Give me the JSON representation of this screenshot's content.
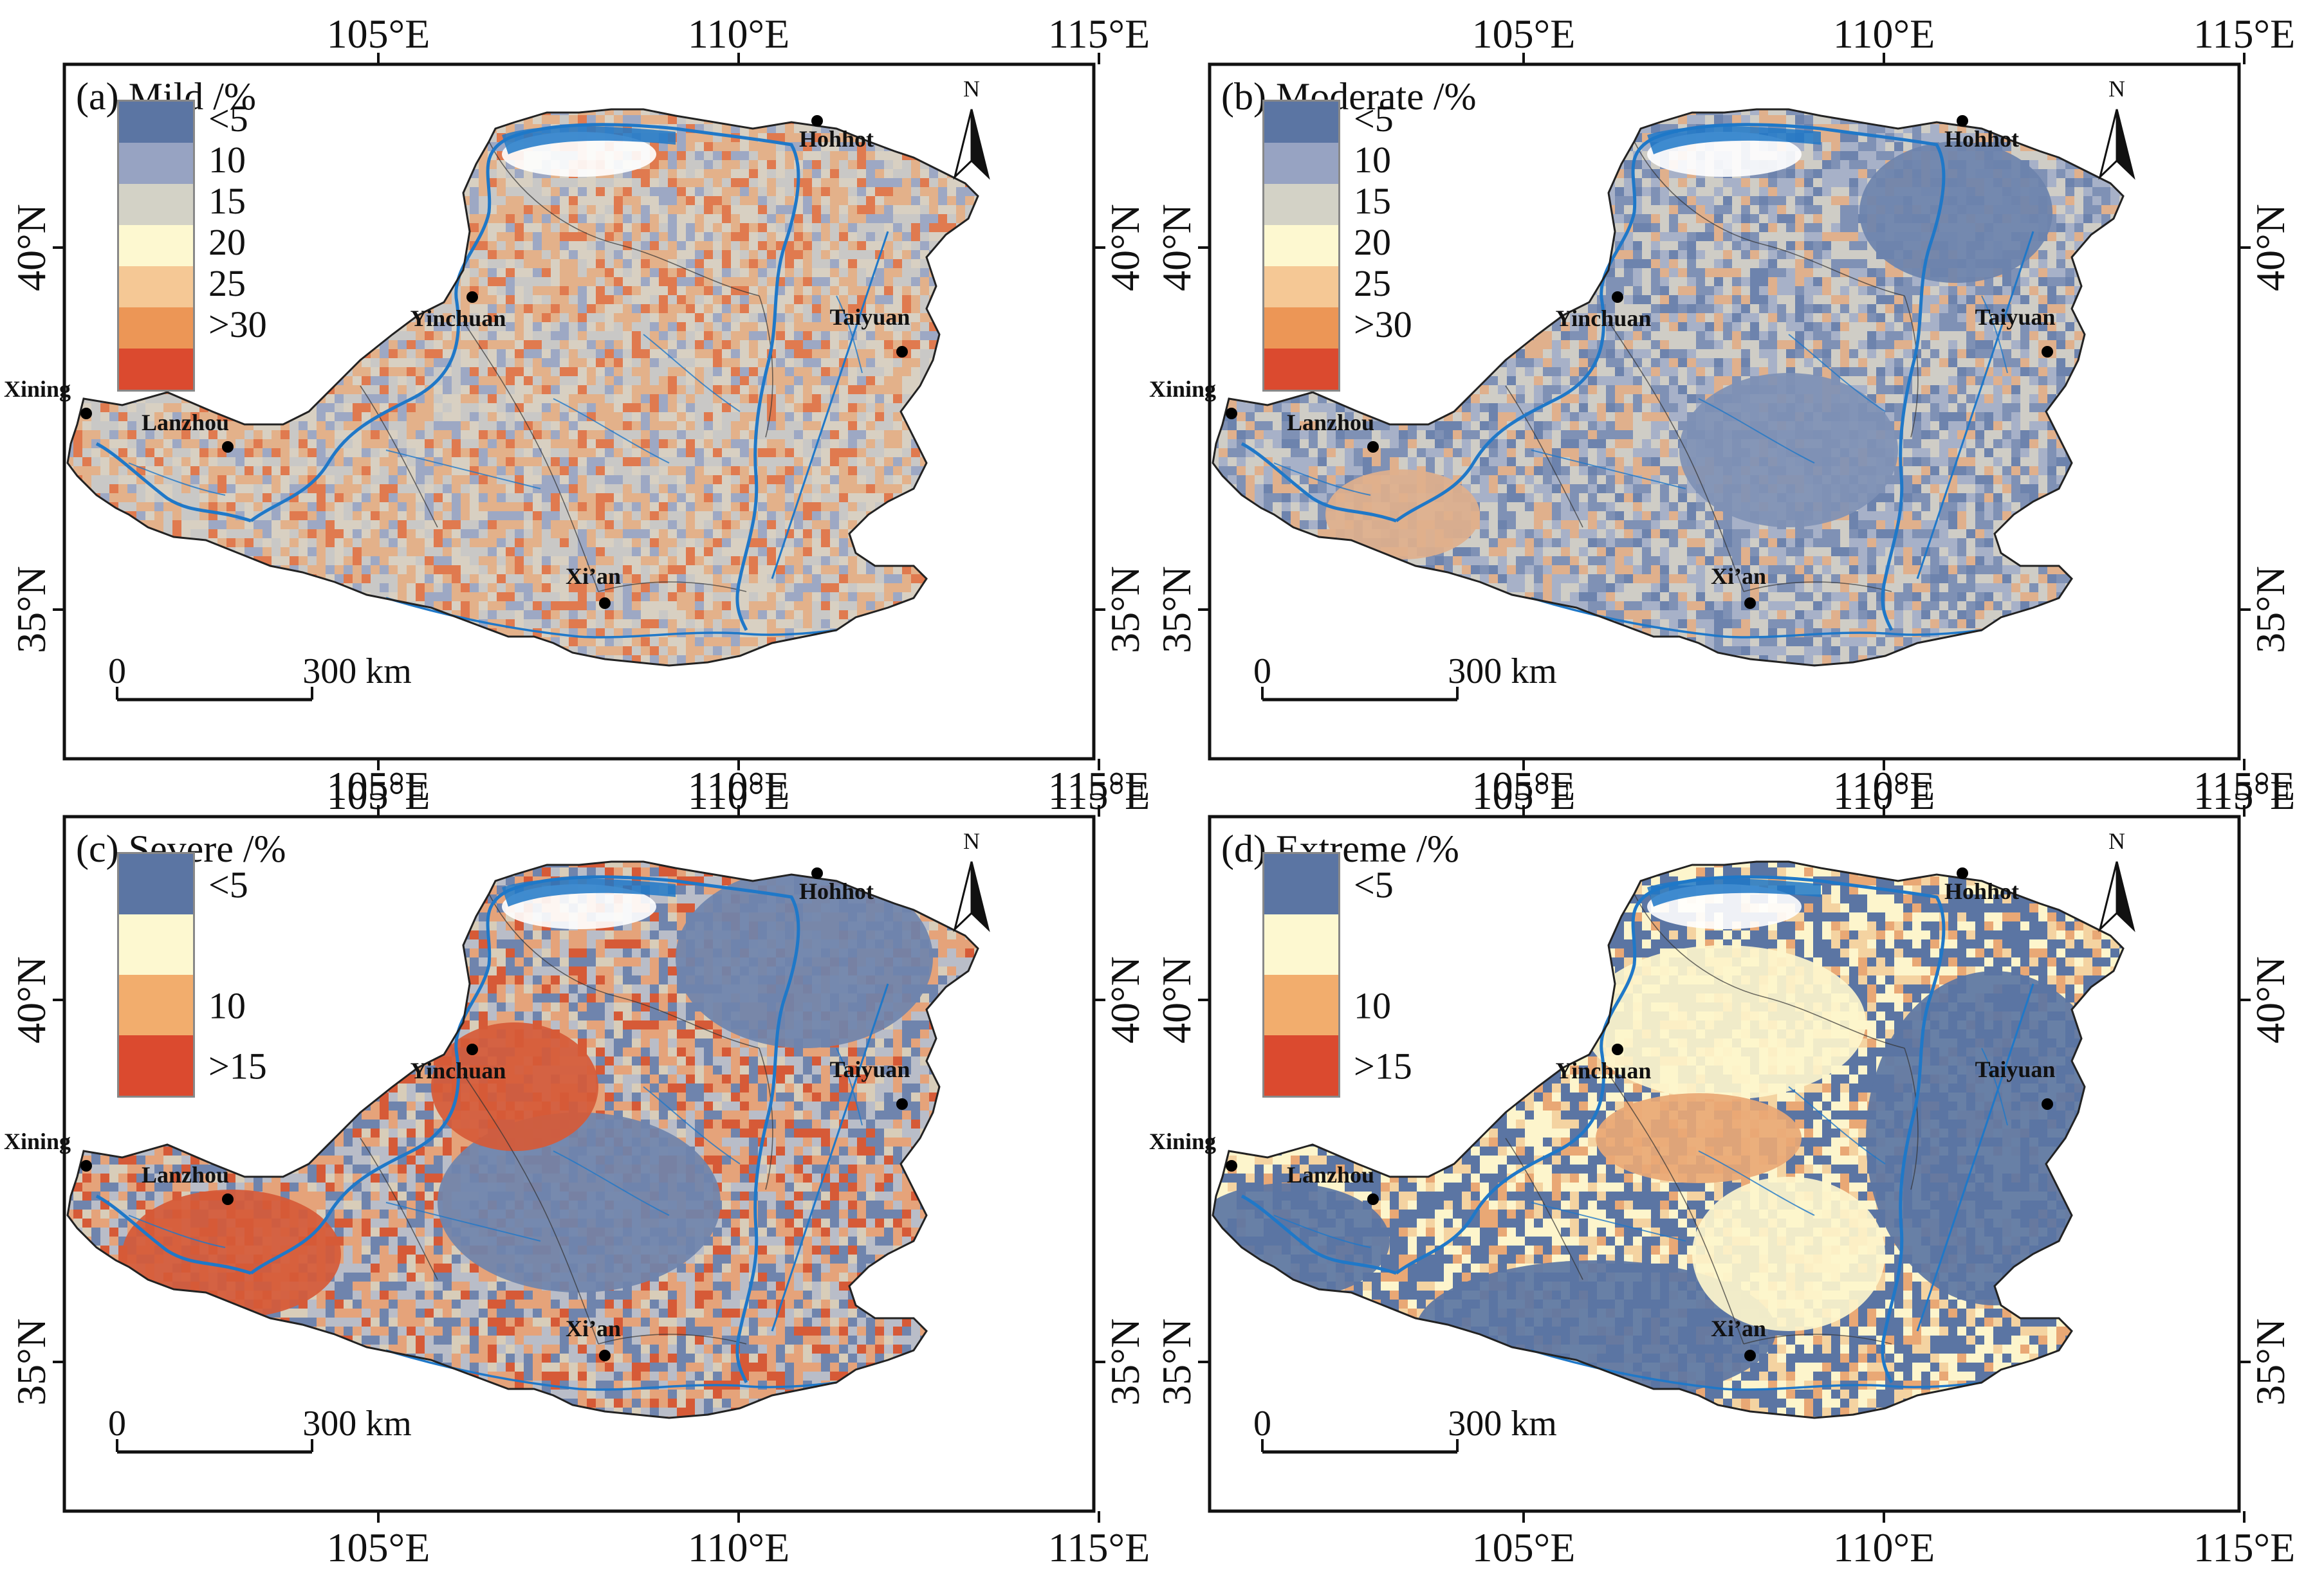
{
  "figure": {
    "axis_labels": {
      "lon_ticks": [
        "105°E",
        "110°E",
        "115°E"
      ],
      "lat_ticks": [
        "40°N",
        "35°N"
      ]
    },
    "north_label": "N",
    "scale_bar": {
      "start": "0",
      "end": "300 km"
    },
    "cities": [
      {
        "name": "Hohhot"
      },
      {
        "name": "Yinchuan"
      },
      {
        "name": "Taiyuan"
      },
      {
        "name": "Xining"
      },
      {
        "name": "Lanzhou"
      },
      {
        "name": "Xi’an"
      }
    ],
    "panels": [
      {
        "title": "(a) Mild /%",
        "legend": [
          {
            "label": "<5",
            "color": "#5b75a3"
          },
          {
            "label": "10",
            "color": "#97a3c2"
          },
          {
            "label": "15",
            "color": "#d3d2c6"
          },
          {
            "label": "20",
            "color": "#fdf8d0"
          },
          {
            "label": "25",
            "color": "#f5c895"
          },
          {
            "label": ">30",
            "color": "#ec9656"
          },
          {
            "label": "",
            "color": "#db4a2f"
          }
        ],
        "map_palette": [
          "#d8d0c2",
          "#e3b18a",
          "#c9c8c6",
          "#9da8c4",
          "#e07a4f"
        ]
      },
      {
        "title": "(b) Moderate /%",
        "legend": [
          {
            "label": "<5",
            "color": "#5b75a3"
          },
          {
            "label": "10",
            "color": "#97a3c2"
          },
          {
            "label": "15",
            "color": "#d3d2c6"
          },
          {
            "label": "20",
            "color": "#fdf8d0"
          },
          {
            "label": "25",
            "color": "#f5c895"
          },
          {
            "label": ">30",
            "color": "#ec9656"
          },
          {
            "label": "",
            "color": "#db4a2f"
          }
        ],
        "map_palette": [
          "#a7b1c8",
          "#cfcdc6",
          "#7f91b5",
          "#e0b08c",
          "#6d83ad"
        ]
      },
      {
        "title": "(c) Severe /%",
        "legend": [
          {
            "label": "<5",
            "color": "#5b75a3"
          },
          {
            "label": "",
            "color": "#fdf8d0"
          },
          {
            "label": "10",
            "color": "#f2ad6d"
          },
          {
            "label": ">15",
            "color": "#db4a2f"
          }
        ],
        "map_palette": [
          "#b9bdc8",
          "#e5a37a",
          "#6f84ad",
          "#d65a37",
          "#d8cdb9"
        ]
      },
      {
        "title": "(d) Extreme /%",
        "legend": [
          {
            "label": "<5",
            "color": "#5b75a3"
          },
          {
            "label": "",
            "color": "#fdf8d0"
          },
          {
            "label": "10",
            "color": "#f2ad6d"
          },
          {
            "label": ">15",
            "color": "#db4a2f"
          }
        ],
        "map_palette": [
          "#5b75a3",
          "#fdf5cc",
          "#5b75a3",
          "#f4d3a1",
          "#e9a875"
        ]
      }
    ],
    "colors": {
      "river": "#1f78c8",
      "frame": "#111111",
      "boundary": "#333333"
    }
  }
}
